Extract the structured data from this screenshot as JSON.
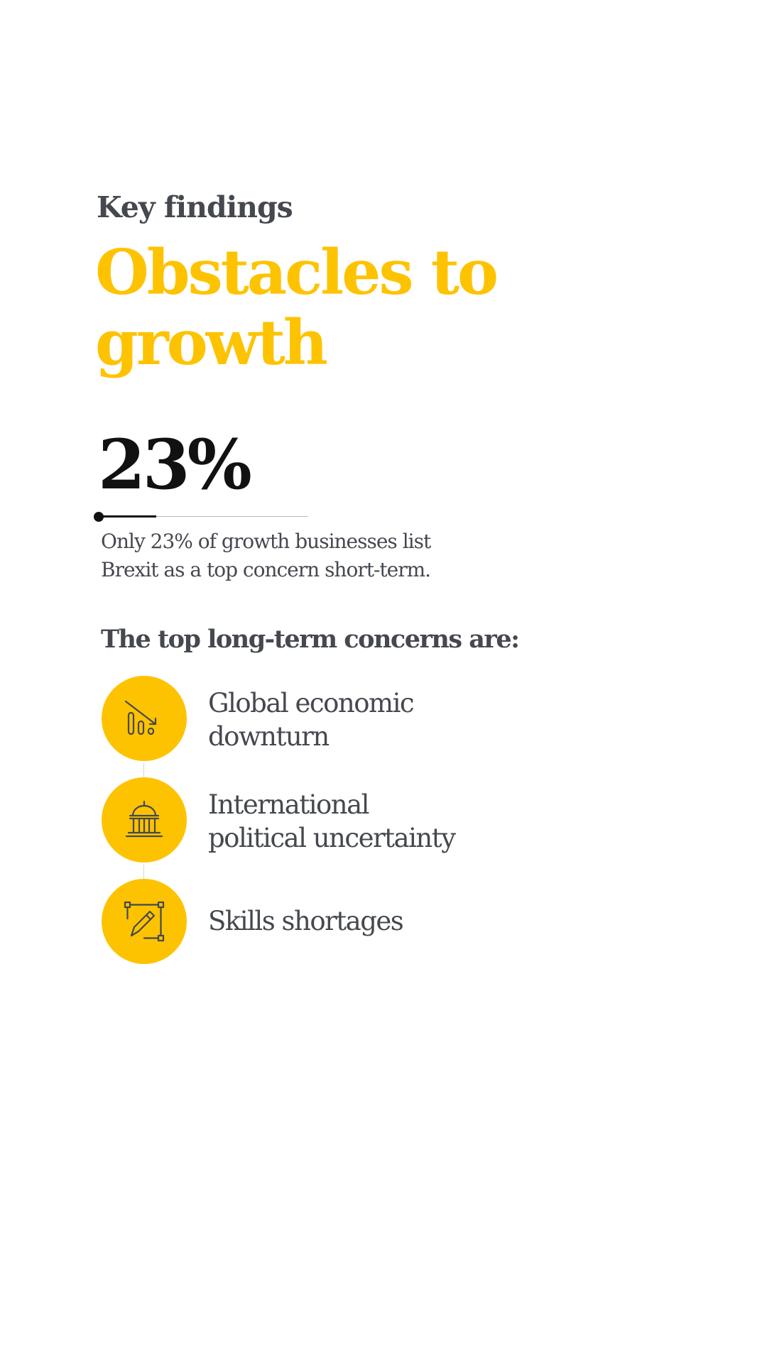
{
  "kicker": "Key findings",
  "title": {
    "line1": "Obstacles to",
    "line2": "growth"
  },
  "stat": {
    "value": "23%",
    "fraction": 0.23,
    "description_line1": "Only 23% of growth businesses list",
    "description_line2": "Brexit as a top concern short-term."
  },
  "concerns_heading": "The top long-term concerns are:",
  "concerns": [
    {
      "line1": "Global economic",
      "line2": "downturn",
      "icon": "declining-chart-icon"
    },
    {
      "line1": "International",
      "line2": "political uncertainty",
      "icon": "government-building-icon"
    },
    {
      "line1": "Skills shortages",
      "line2": "",
      "icon": "design-pencil-icon"
    }
  ],
  "colors": {
    "accent": "#fdc300",
    "text": "#45484f",
    "stat": "#111111",
    "background": "#ffffff"
  }
}
